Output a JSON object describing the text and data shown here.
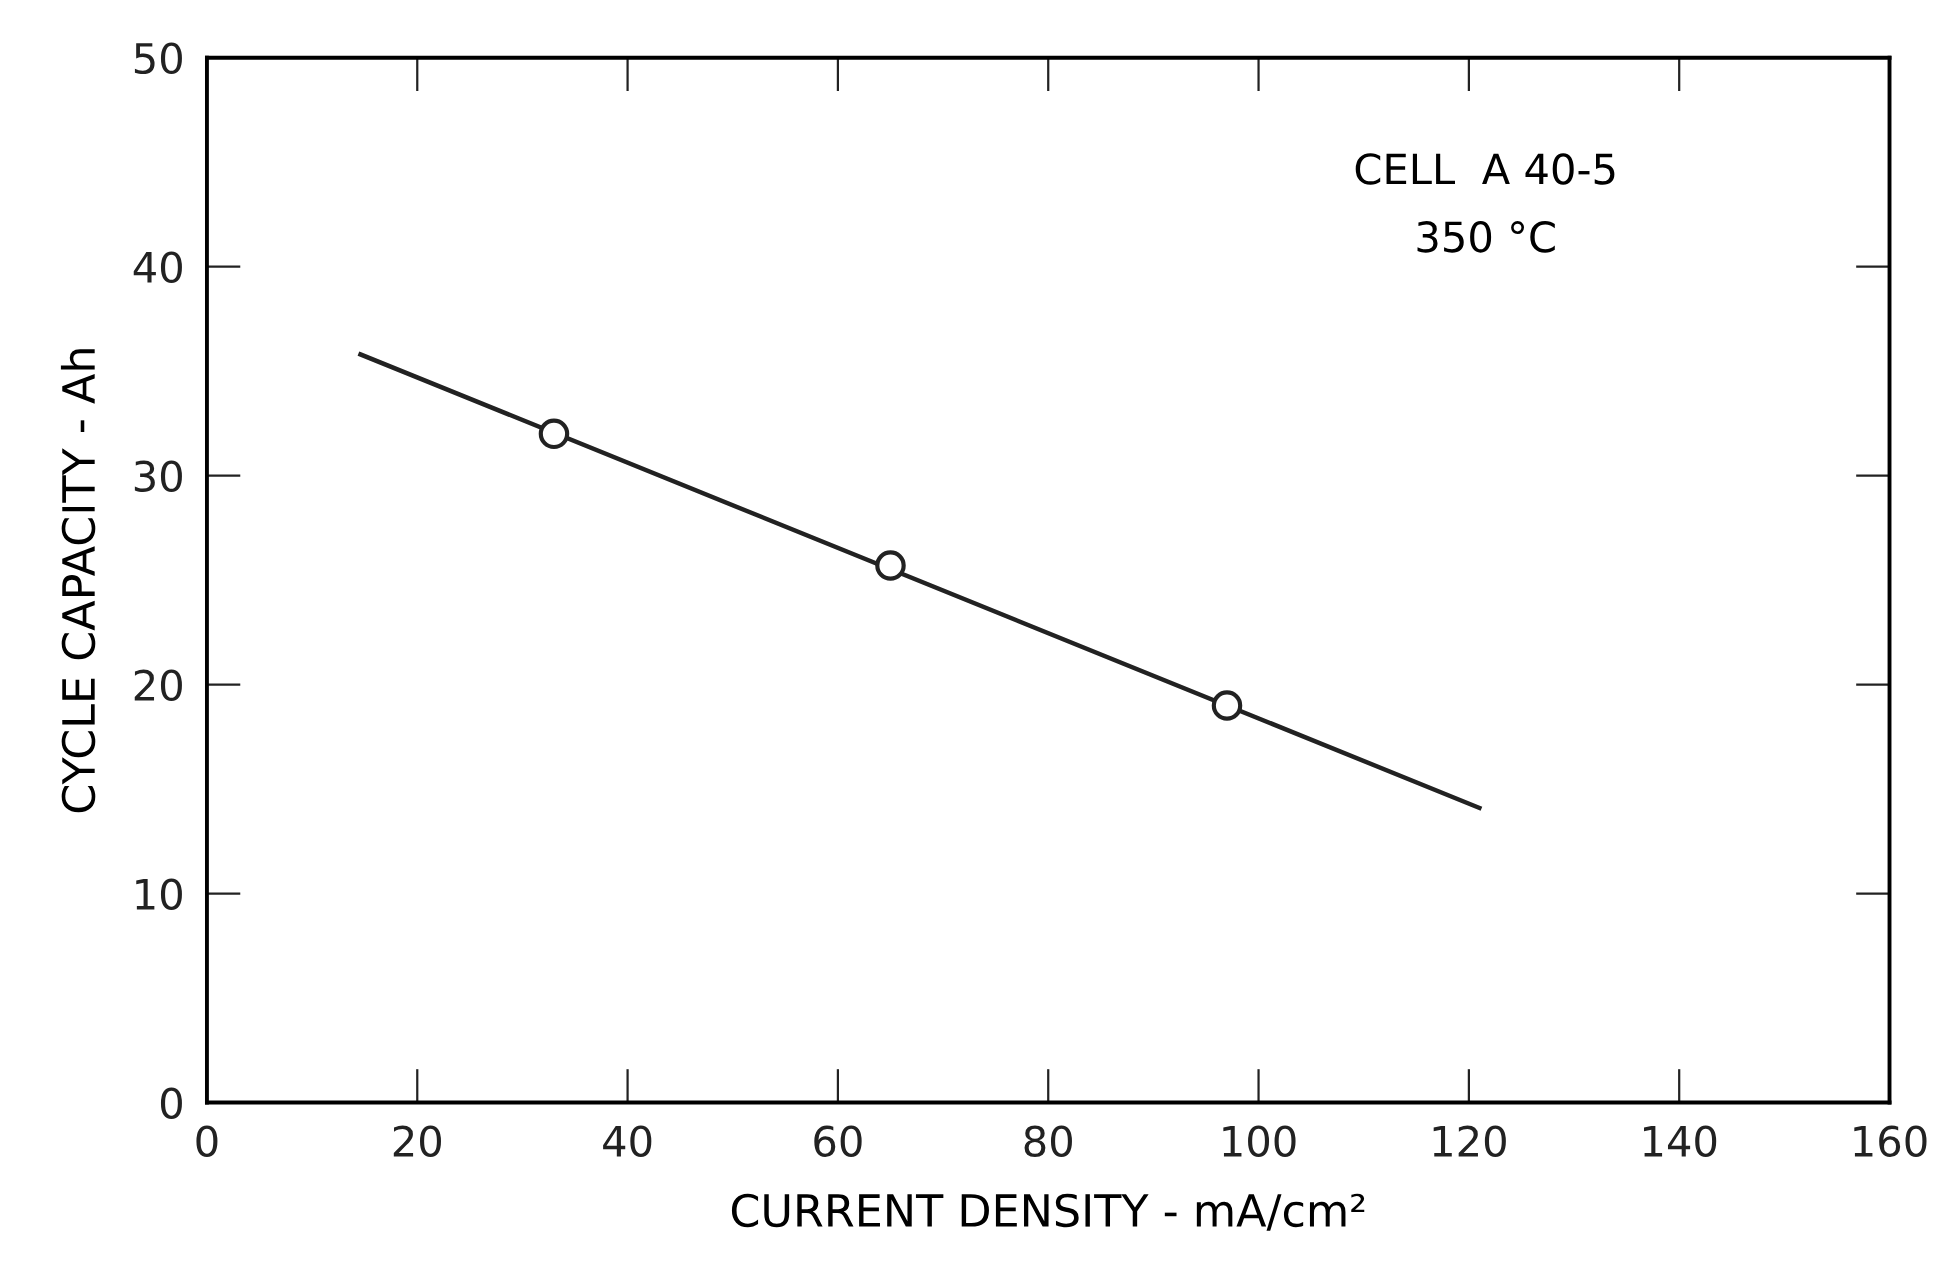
{
  "chart_data": {
    "type": "line",
    "xlabel": "CURRENT DENSITY - mA/cm²",
    "ylabel": "CYCLE CAPACITY - Ah",
    "annotations": [
      "CELL  A 40-5",
      "350 °C"
    ],
    "series": [
      {
        "color": "#222222",
        "x": [
          14.6,
          121
        ],
        "values": [
          35.8,
          14.1
        ],
        "marker": "none"
      },
      {
        "type": "scatter",
        "color": "#222222",
        "x": [
          33,
          65,
          97
        ],
        "values": [
          32,
          25.7,
          19.0
        ],
        "marker": "circle"
      }
    ],
    "xlim": [
      0,
      160
    ],
    "xticks": [
      0,
      20,
      40,
      60,
      80,
      100,
      120,
      140,
      160
    ],
    "ylim": [
      0,
      50
    ],
    "yticks": [
      0,
      10,
      20,
      30,
      40,
      50
    ],
    "grid": false,
    "legend": false
  }
}
